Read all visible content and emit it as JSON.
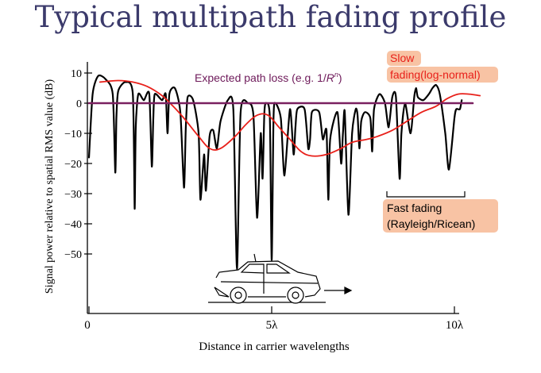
{
  "page": {
    "title": "Typical multipath fading profile"
  },
  "chart_data": {
    "type": "line",
    "title": "Typical multipath fading profile",
    "xlabel": "Distance in carrier wavelengths",
    "ylabel": "Signal power relative to spatial RMS value (dB)",
    "xlim": [
      0,
      10.5
    ],
    "ylim": [
      -58,
      12
    ],
    "x_ticks": [
      {
        "value": 0,
        "label": "0"
      },
      {
        "value": 5,
        "label": "5λ"
      },
      {
        "value": 10,
        "label": "10λ"
      }
    ],
    "y_ticks": [
      {
        "value": 10,
        "label": "10"
      },
      {
        "value": 0,
        "label": "0"
      },
      {
        "value": -10,
        "label": "−10"
      },
      {
        "value": -20,
        "label": "−20"
      },
      {
        "value": -30,
        "label": "−30"
      },
      {
        "value": -40,
        "label": "−40"
      },
      {
        "value": -50,
        "label": "−50"
      }
    ],
    "series": [
      {
        "color": "#000000",
        "x": [
          0.0,
          0.1,
          0.25,
          0.45,
          0.65,
          0.72,
          0.75,
          0.8,
          1.0,
          1.2,
          1.25,
          1.28,
          1.35,
          1.5,
          1.65,
          1.72,
          1.76,
          1.8,
          2.0,
          2.1,
          2.15,
          2.2,
          2.35,
          2.5,
          2.6,
          2.65,
          2.7,
          2.85,
          3.0,
          3.05,
          3.15,
          3.2,
          3.3,
          3.4,
          3.5,
          3.6,
          3.8,
          3.95,
          4.05,
          4.15,
          4.35,
          4.5,
          4.6,
          4.7,
          4.75,
          4.8,
          4.85,
          4.95,
          5.0,
          5.05,
          5.1,
          5.25,
          5.35,
          5.5,
          5.6,
          5.65,
          5.7,
          5.9,
          6.0,
          6.05,
          6.1,
          6.3,
          6.4,
          6.5,
          6.55,
          6.6,
          6.8,
          6.9,
          6.95,
          7.0,
          7.1,
          7.2,
          7.3,
          7.35,
          7.4,
          7.45,
          7.55,
          7.7,
          7.75,
          7.8,
          7.95,
          8.1,
          8.2,
          8.3,
          8.4,
          8.5,
          8.55,
          8.65,
          8.8,
          8.9,
          8.95,
          9.0,
          9.15,
          9.3,
          9.4,
          9.5,
          9.6,
          9.75,
          9.85,
          10.0,
          10.05,
          10.15,
          10.2
        ],
        "y": [
          -18,
          3,
          9,
          8,
          3,
          -23,
          -5,
          4,
          7,
          3,
          -35,
          -8,
          3,
          1,
          3,
          -21,
          -5,
          3,
          1,
          3,
          -10,
          3,
          5,
          -3,
          -28,
          -8,
          2,
          1,
          -10,
          -32,
          -17,
          -29,
          -11,
          -9,
          -15,
          -6,
          1,
          -2,
          -55,
          -3,
          0,
          -4,
          -38,
          -10,
          -25,
          -3,
          0,
          -5,
          -52,
          -5,
          0,
          -5,
          -24,
          -2,
          -17,
          -8,
          -2,
          -2,
          -15,
          -12,
          -3,
          -3,
          -12,
          -9,
          -32,
          -12,
          -3,
          -20,
          -10,
          -3,
          -37,
          -10,
          -2,
          -4,
          -15,
          -6,
          -3,
          -5,
          -16,
          -2,
          3,
          0,
          -8,
          2,
          2,
          -25,
          -10,
          0,
          -10,
          2,
          5,
          2,
          1,
          3,
          5,
          6,
          3,
          -10,
          -22,
          -5,
          -2,
          -2,
          1
        ]
      },
      {
        "color": "#e8201a",
        "x": [
          0.3,
          0.8,
          1.2,
          1.6,
          2.0,
          2.3,
          2.6,
          3.0,
          3.3,
          3.6,
          4.0,
          4.3,
          4.6,
          4.9,
          5.2,
          5.5,
          5.8,
          6.1,
          6.5,
          6.9,
          7.2,
          7.6,
          7.9,
          8.3,
          8.7,
          9.1,
          9.5,
          9.8,
          10.1,
          10.4,
          10.7
        ],
        "y": [
          7,
          7.5,
          7,
          5.5,
          2.5,
          -1,
          -5,
          -11,
          -15,
          -15,
          -11,
          -7,
          -4,
          -4,
          -8,
          -12,
          -16,
          -17.5,
          -17,
          -15,
          -13,
          -12,
          -11,
          -9,
          -6,
          -3,
          -1,
          1.5,
          3,
          3,
          2.5
        ]
      },
      {
        "color": "#7a2060",
        "x": [
          0.0,
          10.5
        ],
        "y": [
          0,
          0
        ]
      }
    ],
    "annotations": {
      "expected_prefix": "Expected path loss (e.g. 1/",
      "expected_var": "R",
      "expected_sup": "n",
      "expected_suffix": ")",
      "slow_line1": "Slow",
      "slow_line2": "fading(log-normal)",
      "fast_line1": "Fast fading",
      "fast_line2": "(Rayleigh/Ricean)"
    }
  }
}
